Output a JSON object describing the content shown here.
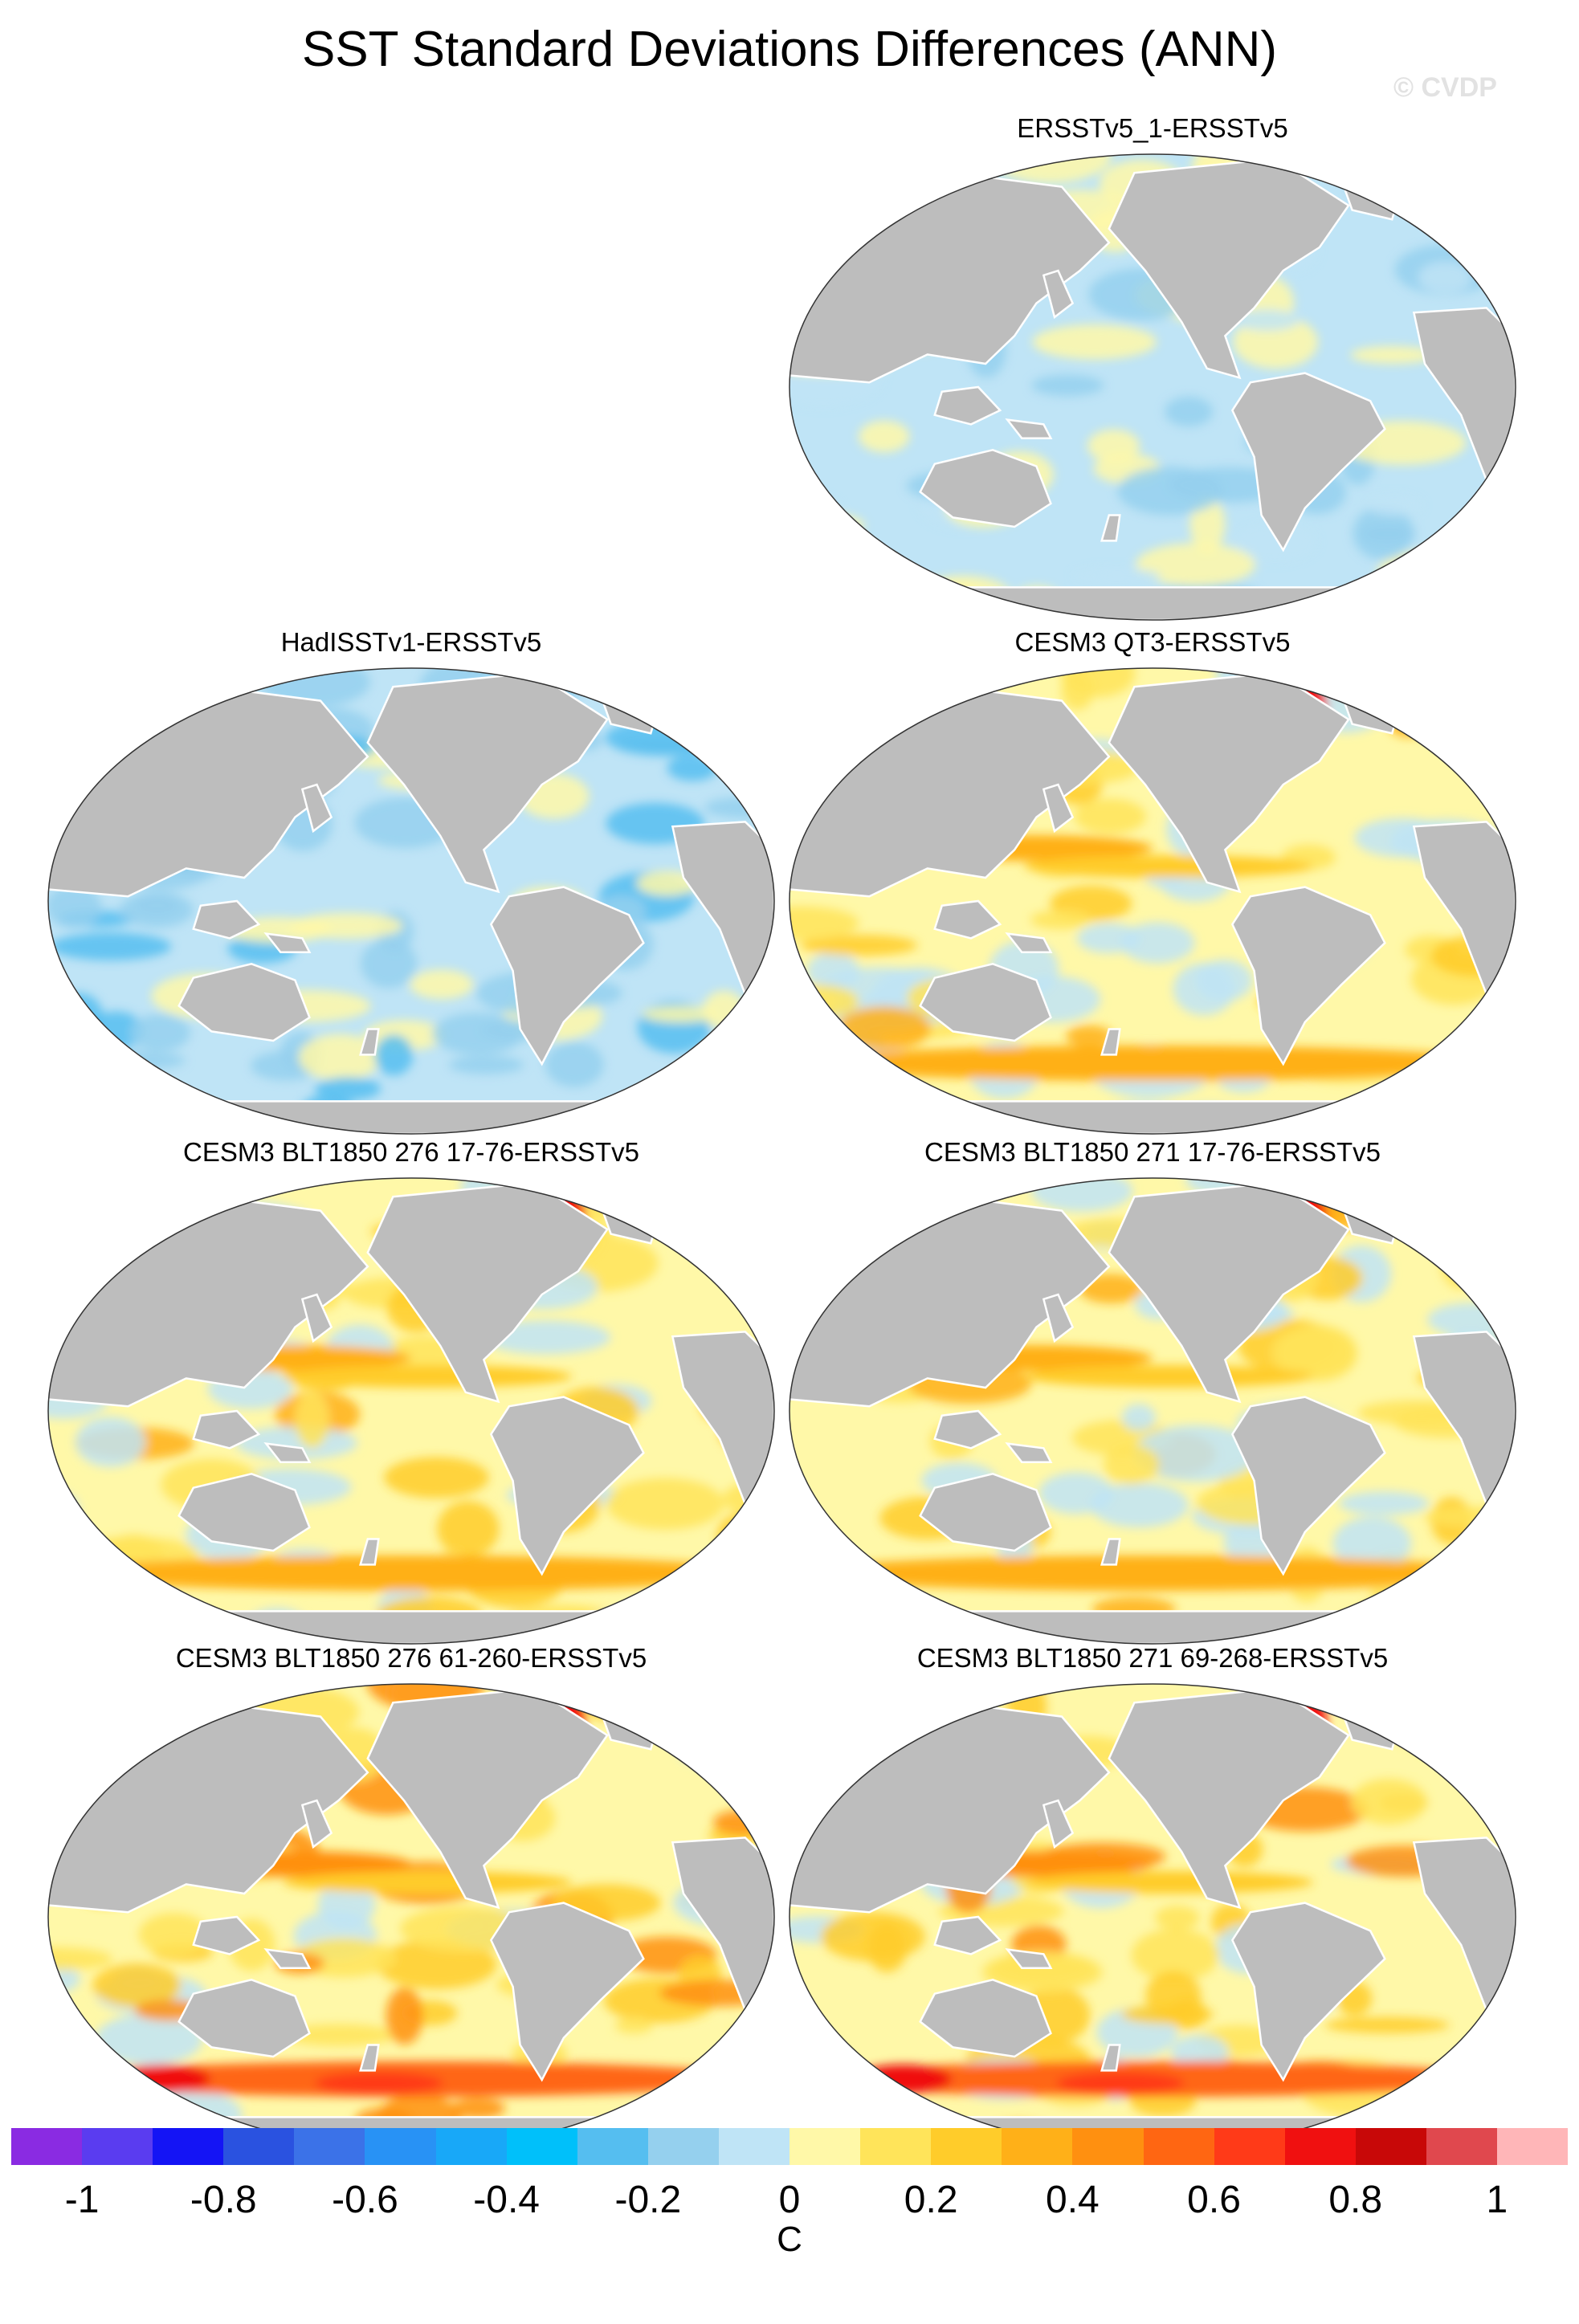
{
  "title": "SST Standard Deviations Differences (ANN)",
  "watermark": "© CVDP",
  "panels": [
    {
      "title": "ERSSTv5_1-ERSSTv5",
      "pattern": "light"
    },
    {
      "title": "HadISSTv1-ERSSTv5",
      "pattern": "cool"
    },
    {
      "title": "CESM3 QT3-ERSSTv5",
      "pattern": "warm"
    },
    {
      "title": "CESM3 BLT1850 276 17-76-ERSSTv5",
      "pattern": "warm"
    },
    {
      "title": "CESM3 BLT1850 271 17-76-ERSSTv5",
      "pattern": "warm"
    },
    {
      "title": "CESM3 BLT1850 276 61-260-ERSSTv5",
      "pattern": "hot"
    },
    {
      "title": "CESM3 BLT1850 271 69-268-ERSSTv5",
      "pattern": "hot"
    }
  ],
  "colorbar": {
    "colors": [
      "#8a2be2",
      "#5a3cf0",
      "#1414f5",
      "#2a52e0",
      "#3b72e8",
      "#2892f5",
      "#18a8f8",
      "#00c0fa",
      "#55bef0",
      "#95d0ee",
      "#bfe4f6",
      "#fff8a8",
      "#ffe45a",
      "#ffcc2a",
      "#ffb018",
      "#ff9010",
      "#ff6612",
      "#ff3a18",
      "#f01010",
      "#c80808",
      "#e0484e",
      "#ffb6b8"
    ],
    "tick_labels": [
      "-1",
      "-0.8",
      "-0.6",
      "-0.4",
      "-0.2",
      "0",
      "0.2",
      "0.4",
      "0.6",
      "0.8",
      "1"
    ],
    "unit": "C"
  }
}
